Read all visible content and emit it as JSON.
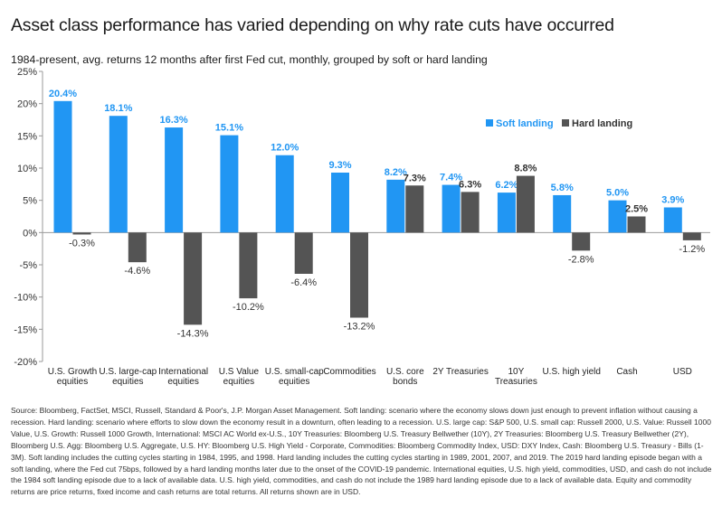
{
  "header": {
    "title": "Asset class performance has varied depending on why rate cuts have occurred",
    "subtitle": "1984-present, avg. returns 12 months after first Fed cut, monthly, grouped by soft or hard landing"
  },
  "colors": {
    "soft": "#2196F3",
    "hard": "#545454",
    "axis": "#999999",
    "grid": "#dddddd"
  },
  "chart_data": {
    "type": "bar",
    "title": "Asset class performance has varied depending on why rate cuts have occurred",
    "subtitle": "1984-present, avg. returns 12 months after first Fed cut, monthly, grouped by soft or hard landing",
    "categories": [
      [
        "U.S. Growth",
        "equities"
      ],
      [
        "U.S. large-cap",
        "equities"
      ],
      [
        "International",
        "equities"
      ],
      [
        "U.S Value",
        "equities"
      ],
      [
        "U.S. small-cap",
        "equities"
      ],
      [
        "Commodities"
      ],
      [
        "U.S. core",
        "bonds"
      ],
      [
        "2Y Treasuries"
      ],
      [
        "10Y",
        "Treasuries"
      ],
      [
        "U.S. high yield"
      ],
      [
        "Cash"
      ],
      [
        "USD"
      ]
    ],
    "series": [
      {
        "name": "Soft landing",
        "values": [
          20.4,
          18.1,
          16.3,
          15.1,
          12.0,
          9.3,
          8.2,
          7.4,
          6.2,
          5.8,
          5.0,
          3.9
        ],
        "labels": [
          "20.4%",
          "18.1%",
          "16.3%",
          "15.1%",
          "12.0%",
          "9.3%",
          "8.2%",
          "7.4%",
          "6.2%",
          "5.8%",
          "5.0%",
          "3.9%"
        ]
      },
      {
        "name": "Hard landing",
        "values": [
          -0.3,
          -4.6,
          -14.3,
          -10.2,
          -6.4,
          -13.2,
          7.3,
          6.3,
          8.8,
          -2.8,
          2.5,
          -1.2
        ],
        "labels": [
          "-0.3%",
          "-4.6%",
          "-14.3%",
          "-10.2%",
          "-6.4%",
          "-13.2%",
          "7.3%",
          "6.3%",
          "8.8%",
          "-2.8%",
          "2.5%",
          "-1.2%"
        ]
      }
    ],
    "yticks": [
      25,
      20,
      15,
      10,
      5,
      0,
      -5,
      -10,
      -15,
      -20
    ],
    "ytick_labels": [
      "25%",
      "20%",
      "15%",
      "10%",
      "5%",
      "0%",
      "-5%",
      "-10%",
      "-15%",
      "-20%"
    ],
    "ylim": [
      -20,
      25
    ],
    "grid": false,
    "legend_position": "top-right"
  },
  "footer": {
    "source": "Source: Bloomberg, FactSet, MSCI, Russell, Standard & Poor's, J.P. Morgan Asset Management. Soft landing: scenario where the economy slows down just enough to prevent inflation without causing a recession. Hard landing: scenario where efforts to slow down the economy result in a downturn, often leading to a recession. U.S. large cap: S&P 500, U.S. small cap: Russell 2000, U.S. Value: Russell 1000 Value, U.S. Growth: Russell 1000 Growth, International: MSCI AC World ex-U.S., 10Y Treasuries: Bloomberg U.S. Treasury Bellwether (10Y), 2Y Treasuries: Bloomberg U.S. Treasury Bellwether (2Y), Bloomberg U.S. Agg: Bloomberg U.S. Aggregate, U.S. HY: Bloomberg U.S. High Yield - Corporate, Commodities: Bloomberg Commodity Index, USD: DXY Index, Cash: Bloomberg U.S. Treasury - Bills (1-3M). Soft landing includes the cutting cycles starting in 1984, 1995, and 1998. Hard landing includes the cutting cycles starting in 1989, 2001, 2007, and 2019. The 2019 hard landing episode began with a soft landing, where the Fed cut 75bps, followed by a hard landing months later due to the onset of the COVID-19 pandemic. International equities, U.S. high yield, commodities, USD, and cash do not include the 1984 soft landing episode due to a lack of available data. U.S. high yield, commodities, and cash do not include the 1989 hard landing episode due to a lack of available data. Equity and commodity returns are price returns, fixed income and cash returns are total returns. All returns shown are in USD."
  }
}
